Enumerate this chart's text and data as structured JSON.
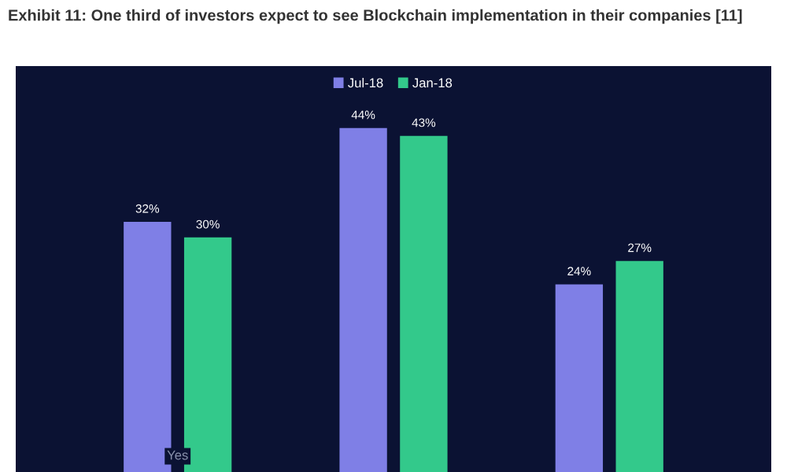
{
  "chart_data": {
    "type": "bar",
    "title": "Exhibit 11: One third of investors expect to see Blockchain implementation in their companies [11]",
    "categories": [
      "Yes",
      null,
      null
    ],
    "series": [
      {
        "name": "Jul-18",
        "color": "#7f7fe6",
        "values": [
          32,
          44,
          24
        ],
        "value_labels": [
          "32%",
          "44%",
          "24%"
        ]
      },
      {
        "name": "Jan-18",
        "color": "#33c98b",
        "values": [
          30,
          43,
          27
        ],
        "value_labels": [
          "30%",
          "43%",
          "27%"
        ]
      }
    ],
    "legend": "top"
  }
}
